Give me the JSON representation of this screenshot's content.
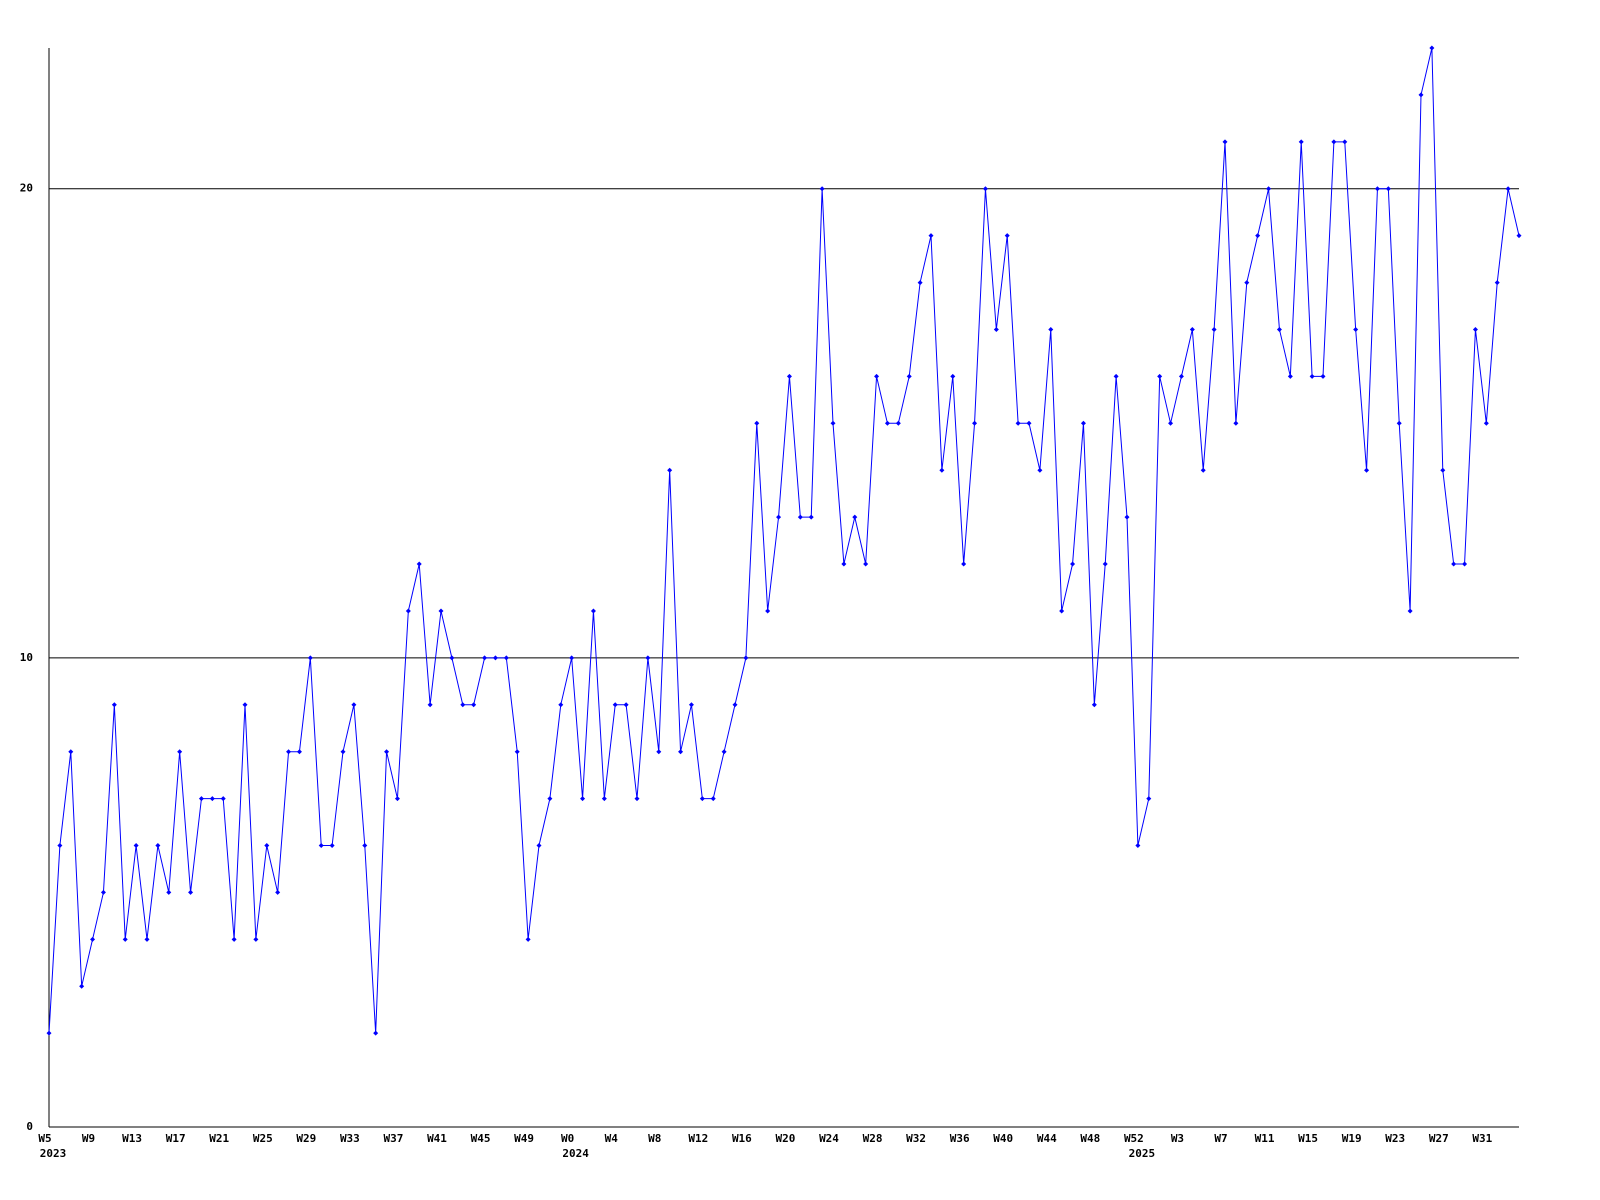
{
  "chart_data": {
    "type": "line",
    "categories": [
      {
        "label": "W5",
        "year": "2023"
      },
      null,
      null,
      null,
      "W9",
      null,
      null,
      null,
      "W13",
      null,
      null,
      null,
      "W17",
      null,
      null,
      null,
      "W21",
      null,
      null,
      null,
      "W25",
      null,
      null,
      null,
      "W29",
      null,
      null,
      null,
      "W33",
      null,
      null,
      null,
      "W37",
      null,
      null,
      null,
      "W41",
      null,
      null,
      null,
      "W45",
      null,
      null,
      null,
      "W49",
      null,
      null,
      null,
      {
        "label": "W0",
        "year": "2024"
      },
      null,
      null,
      null,
      "W4",
      null,
      null,
      null,
      "W8",
      null,
      null,
      null,
      "W12",
      null,
      null,
      null,
      "W16",
      null,
      null,
      null,
      "W20",
      null,
      null,
      null,
      "W24",
      null,
      null,
      null,
      "W28",
      null,
      null,
      null,
      "W32",
      null,
      null,
      null,
      "W36",
      null,
      null,
      null,
      "W40",
      null,
      null,
      null,
      "W44",
      null,
      null,
      null,
      "W48",
      null,
      null,
      null,
      {
        "label": "W52",
        "year": "2025"
      },
      null,
      null,
      null,
      "W3",
      null,
      null,
      null,
      "W7",
      null,
      null,
      null,
      "W11",
      null,
      null,
      null,
      "W15",
      null,
      null,
      null,
      "W19",
      null,
      null,
      null,
      "W23",
      null,
      null,
      null,
      "W27",
      null,
      null,
      null,
      "W31",
      null,
      null,
      null
    ],
    "series": [
      {
        "color": "#0000ff",
        "values": [
          2,
          6,
          8,
          3,
          4,
          5,
          9,
          4,
          6,
          4,
          6,
          5,
          8,
          5,
          7,
          7,
          7,
          4,
          9,
          4,
          6,
          5,
          8,
          8,
          10,
          6,
          6,
          8,
          9,
          6,
          2,
          8,
          7,
          11,
          12,
          9,
          11,
          10,
          9,
          9,
          10,
          10,
          10,
          8,
          4,
          6,
          7,
          9,
          10,
          7,
          11,
          7,
          9,
          9,
          7,
          10,
          8,
          14,
          8,
          9,
          7,
          7,
          8,
          9,
          10,
          15,
          11,
          13,
          16,
          13,
          13,
          20,
          15,
          12,
          13,
          12,
          16,
          15,
          15,
          16,
          18,
          19,
          14,
          16,
          12,
          15,
          20,
          17,
          19,
          15,
          15,
          14,
          17,
          11,
          12,
          15,
          9,
          12,
          16,
          13,
          6,
          7,
          16,
          15,
          16,
          17,
          14,
          17,
          21,
          15,
          18,
          19,
          20,
          17,
          16,
          21,
          16,
          16,
          21,
          21,
          17,
          14,
          20,
          20,
          15,
          11,
          22,
          23,
          14,
          12,
          12,
          17,
          15,
          18,
          20,
          19
        ]
      }
    ],
    "ylim": [
      0,
      23
    ],
    "yticks": [
      0,
      10,
      20
    ],
    "grid": true
  }
}
